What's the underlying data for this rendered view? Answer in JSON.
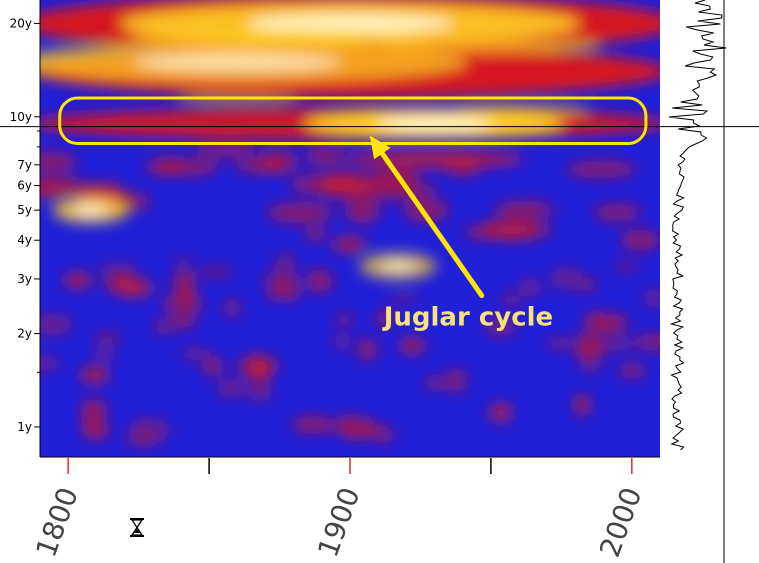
{
  "chart_data": {
    "type": "heatmap",
    "title": "",
    "x_axis": {
      "range": [
        1790,
        2010
      ],
      "tick_labels": [
        "1800",
        "1900",
        "2000"
      ],
      "ticks": [
        1800,
        1850,
        1900,
        1950,
        2000
      ]
    },
    "y_axis": {
      "scale": "log",
      "unit": "period (years)",
      "range": [
        0.8,
        23.8
      ],
      "tick_labels": [
        "20y",
        "10y",
        "7y",
        "6y",
        "5y",
        "4y",
        "3y",
        "2y",
        "1y"
      ],
      "tick_values": [
        20,
        10,
        7,
        6,
        5,
        4,
        3,
        2,
        1
      ]
    },
    "colormap": [
      "#1010d8",
      "#e01818",
      "#ffd020",
      "#ffffe6"
    ],
    "power_regions": [
      {
        "center_year": 1930,
        "period": 9.5,
        "intensity": 1.0
      },
      {
        "center_year": 1900,
        "period": 20,
        "intensity": 0.9
      },
      {
        "center_year": 1860,
        "period": 15,
        "intensity": 0.75
      },
      {
        "center_year": 1808,
        "period": 5,
        "intensity": 0.85
      },
      {
        "center_year": 1917,
        "period": 3.3,
        "intensity": 0.75
      }
    ],
    "highlight": {
      "year_range": [
        1797,
        2005
      ],
      "period_range": [
        8.2,
        11.5
      ],
      "color": "#ffe600"
    },
    "annotation": {
      "text": "Juglar cycle",
      "arrow_points_to": {
        "year": 1907,
        "period": 8.7
      },
      "color": "#ffe600"
    },
    "reference_line_period": 9.3,
    "side_panel": "global wavelet power spectrum"
  },
  "icons": {
    "hourglass": "hourglass-icon"
  }
}
